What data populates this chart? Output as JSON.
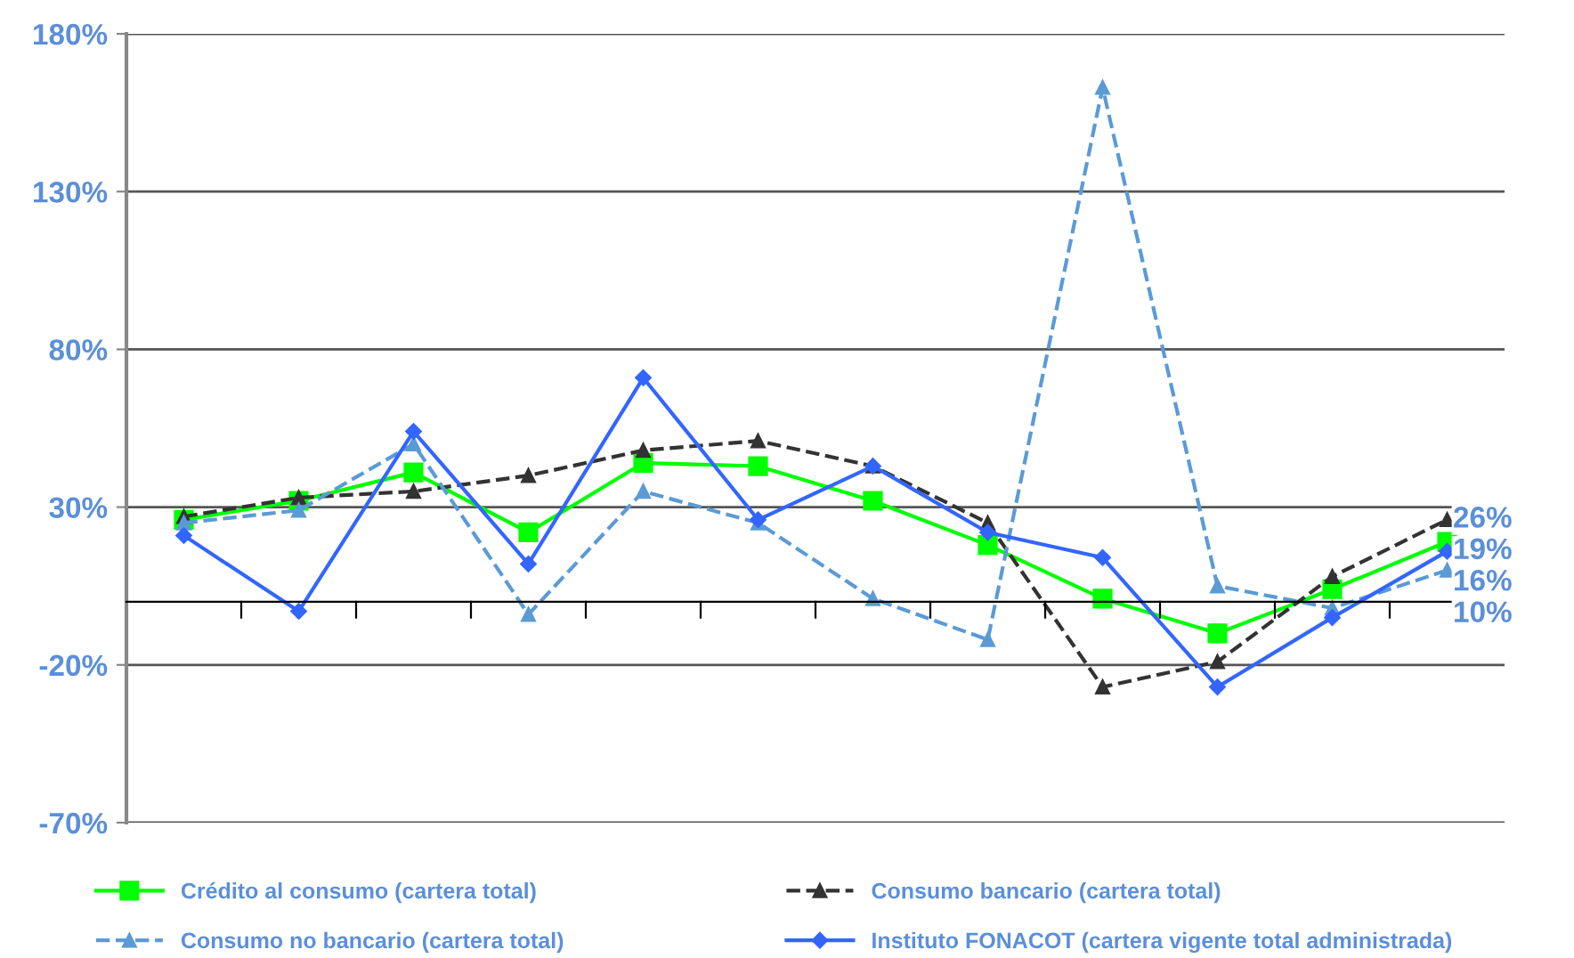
{
  "chart_data": {
    "type": "line",
    "categories": [
      null,
      null,
      null,
      null,
      null,
      null,
      null,
      null,
      null,
      null,
      null,
      null
    ],
    "series": [
      {
        "name": "Crédito al consumo (cartera total)",
        "color": "#00ff00",
        "marker": "square",
        "line_style": "solid",
        "values": [
          26,
          32,
          41,
          22,
          44,
          43,
          32,
          18,
          1,
          -10,
          4,
          19
        ],
        "value_labels": [
          null,
          null,
          null,
          null,
          null,
          null,
          null,
          null,
          null,
          null,
          null,
          "19%"
        ]
      },
      {
        "name": "Consumo bancario (cartera total)",
        "color": "#333333",
        "marker": "triangle",
        "line_style": "dashed",
        "values": [
          27,
          33,
          35,
          40,
          48,
          51,
          43,
          25,
          -27,
          -19,
          8,
          26
        ],
        "value_labels": [
          null,
          null,
          null,
          null,
          null,
          null,
          null,
          null,
          null,
          null,
          null,
          "26%"
        ]
      },
      {
        "name": "Consumo no bancario (cartera total)",
        "color": "#5b9bd5",
        "marker": "triangle",
        "line_style": "dashed",
        "values": [
          25,
          29,
          50,
          -4,
          35,
          25,
          1,
          -12,
          163,
          5,
          -2,
          10
        ],
        "value_labels": [
          null,
          null,
          null,
          null,
          null,
          null,
          null,
          null,
          null,
          null,
          null,
          "10%"
        ]
      },
      {
        "name": "Instituto FONACOT (cartera vigente total administrada)",
        "color": "#3366ff",
        "marker": "diamond",
        "line_style": "solid",
        "values": [
          21,
          -3,
          54,
          12,
          71,
          26,
          43,
          22,
          14,
          -27,
          -5,
          16
        ],
        "value_labels": [
          null,
          null,
          null,
          null,
          null,
          null,
          null,
          null,
          null,
          null,
          null,
          "16%"
        ]
      }
    ],
    "ylim": [
      -70,
      180
    ],
    "yticks": [
      {
        "value": -70,
        "label": "-70%"
      },
      {
        "value": -20,
        "label": "-20%"
      },
      {
        "value": 30,
        "label": "30%"
      },
      {
        "value": 80,
        "label": "80%"
      },
      {
        "value": 130,
        "label": "130%"
      },
      {
        "value": 180,
        "label": "180%"
      }
    ],
    "grid": "y",
    "legend": "bottom"
  }
}
